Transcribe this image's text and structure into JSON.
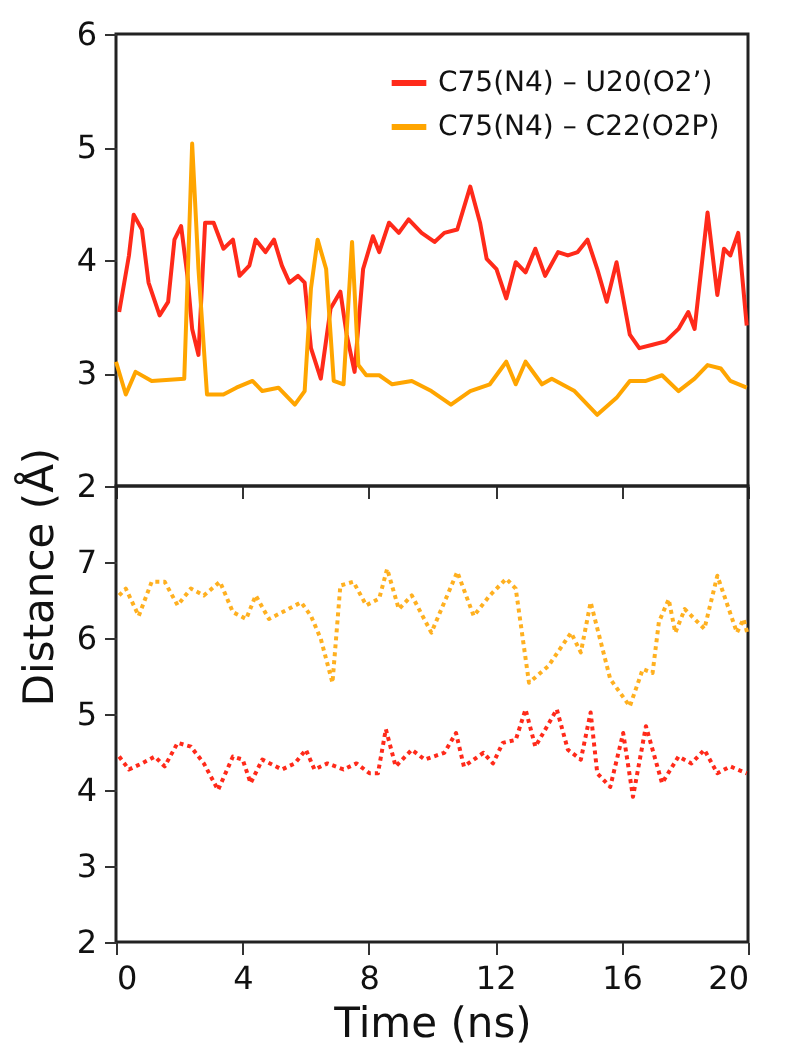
{
  "chart_data": [
    {
      "type": "line",
      "ylabel": "Distance (Å)",
      "xlim": [
        0,
        20
      ],
      "ylim": [
        2,
        6
      ],
      "xticks": [
        0,
        4,
        8,
        12,
        16,
        20
      ],
      "yticks": [
        2,
        3,
        4,
        5,
        6
      ],
      "tick_labels": "y",
      "grid": false,
      "legend": "top right",
      "line_style": "solid",
      "marker": "none",
      "series": [
        {
          "name": "C75(N4) – U20(O2’)",
          "color": "#ff2a1a",
          "x": [
            0.1,
            0.41,
            0.56,
            0.82,
            1.03,
            1.38,
            1.65,
            1.85,
            2.06,
            2.26,
            2.41,
            2.61,
            2.82,
            3.09,
            3.4,
            3.7,
            3.91,
            4.22,
            4.42,
            4.73,
            5.0,
            5.25,
            5.49,
            5.76,
            5.97,
            6.17,
            6.48,
            6.79,
            7.1,
            7.3,
            7.55,
            7.82,
            8.13,
            8.33,
            8.64,
            8.95,
            9.26,
            9.67,
            10.08,
            10.39,
            10.8,
            11.21,
            11.52,
            11.73,
            12.04,
            12.35,
            12.65,
            12.96,
            13.27,
            13.58,
            13.99,
            14.3,
            14.61,
            14.92,
            15.23,
            15.53,
            15.84,
            16.26,
            16.56,
            16.98,
            17.39,
            17.8,
            18.11,
            18.31,
            18.72,
            19.03,
            19.24,
            19.44,
            19.69,
            19.96
          ],
          "values": [
            3.54,
            4.04,
            4.4,
            4.27,
            3.8,
            3.51,
            3.63,
            4.18,
            4.3,
            3.86,
            3.39,
            3.16,
            4.33,
            4.33,
            4.1,
            4.18,
            3.86,
            3.95,
            4.18,
            4.07,
            4.18,
            3.95,
            3.8,
            3.86,
            3.8,
            3.22,
            2.95,
            3.57,
            3.72,
            3.34,
            3.01,
            3.92,
            4.21,
            4.07,
            4.33,
            4.24,
            4.36,
            4.24,
            4.16,
            4.24,
            4.27,
            4.65,
            4.33,
            4.01,
            3.92,
            3.66,
            3.98,
            3.89,
            4.1,
            3.86,
            4.07,
            4.04,
            4.07,
            4.18,
            3.92,
            3.63,
            3.98,
            3.34,
            3.22,
            3.25,
            3.28,
            3.39,
            3.54,
            3.39,
            4.42,
            3.69,
            4.1,
            4.04,
            4.24,
            3.42
          ]
        },
        {
          "name": "C75(N4) – C22(O2P)",
          "color": "#ffa500",
          "x": [
            0,
            0.31,
            0.62,
            1.13,
            2.16,
            2.41,
            2.61,
            2.88,
            3.4,
            3.81,
            4.32,
            4.63,
            5.14,
            5.66,
            5.97,
            6.17,
            6.38,
            6.65,
            6.89,
            7.2,
            7.47,
            7.67,
            7.92,
            8.33,
            8.74,
            9.36,
            9.98,
            10.6,
            11.21,
            11.83,
            12.35,
            12.65,
            12.96,
            13.48,
            13.79,
            14.51,
            15.23,
            15.84,
            16.26,
            16.77,
            17.28,
            17.8,
            18.31,
            18.72,
            19.14,
            19.44,
            19.96
          ],
          "values": [
            3.1,
            2.81,
            3.01,
            2.93,
            2.95,
            5.03,
            3.92,
            2.81,
            2.81,
            2.87,
            2.93,
            2.84,
            2.87,
            2.72,
            2.84,
            3.75,
            4.18,
            3.92,
            2.93,
            2.9,
            4.16,
            3.07,
            2.98,
            2.98,
            2.9,
            2.93,
            2.84,
            2.72,
            2.84,
            2.9,
            3.1,
            2.9,
            3.1,
            2.9,
            2.95,
            2.84,
            2.63,
            2.78,
            2.93,
            2.93,
            2.98,
            2.84,
            2.95,
            3.07,
            3.04,
            2.93,
            2.87
          ]
        }
      ]
    },
    {
      "type": "line",
      "xlabel": "Time (ns)",
      "xlim": [
        0,
        20
      ],
      "ylim": [
        2,
        8
      ],
      "xticks": [
        0,
        4,
        8,
        12,
        16,
        20
      ],
      "yticks": [
        2,
        3,
        4,
        5,
        6,
        7
      ],
      "grid": false,
      "line_style": "dotted",
      "marker": "none",
      "series": [
        {
          "color": "#ffb020",
          "x": [
            0.1,
            0.31,
            0.72,
            1.13,
            1.54,
            1.95,
            2.37,
            2.78,
            3.29,
            3.7,
            4.12,
            4.42,
            4.84,
            5.45,
            5.86,
            6.17,
            6.48,
            6.85,
            7.1,
            7.51,
            7.92,
            8.33,
            8.58,
            8.95,
            9.36,
            9.98,
            10.39,
            10.8,
            11.32,
            11.83,
            12.35,
            12.65,
            13.07,
            13.68,
            14.4,
            14.71,
            15.02,
            15.64,
            16.26,
            16.67,
            16.98,
            17.18,
            17.49,
            17.7,
            18.0,
            18.62,
            19.03,
            19.65,
            19.86,
            20
          ],
          "values": [
            6.56,
            6.65,
            6.29,
            6.74,
            6.74,
            6.43,
            6.65,
            6.56,
            6.74,
            6.34,
            6.25,
            6.56,
            6.25,
            6.38,
            6.47,
            6.29,
            5.99,
            5.41,
            6.69,
            6.74,
            6.43,
            6.52,
            6.91,
            6.38,
            6.56,
            6.07,
            6.47,
            6.87,
            6.29,
            6.56,
            6.78,
            6.65,
            5.41,
            5.63,
            6.07,
            5.81,
            6.47,
            5.46,
            5.1,
            5.59,
            5.54,
            6.21,
            6.51,
            6.07,
            6.38,
            6.12,
            6.82,
            6.07,
            6.25,
            6.03
          ]
        },
        {
          "color": "#ff2a1a",
          "x": [
            0.1,
            0.41,
            0.82,
            1.23,
            1.54,
            1.95,
            2.37,
            2.78,
            3.23,
            3.7,
            4.01,
            4.26,
            4.63,
            5.25,
            5.66,
            6.01,
            6.28,
            6.69,
            7.2,
            7.61,
            8.02,
            8.29,
            8.54,
            8.85,
            9.36,
            9.77,
            10.39,
            10.76,
            11.01,
            11.63,
            11.93,
            12.24,
            12.65,
            12.96,
            13.27,
            13.95,
            14.3,
            14.71,
            15.02,
            15.23,
            15.64,
            16.05,
            16.36,
            16.77,
            17.28,
            17.8,
            18.21,
            18.62,
            19.03,
            19.44,
            19.96
          ],
          "values": [
            4.44,
            4.27,
            4.35,
            4.44,
            4.31,
            4.62,
            4.57,
            4.35,
            4.0,
            4.44,
            4.4,
            4.09,
            4.4,
            4.27,
            4.35,
            4.53,
            4.27,
            4.35,
            4.27,
            4.35,
            4.22,
            4.22,
            4.8,
            4.31,
            4.53,
            4.4,
            4.49,
            4.75,
            4.31,
            4.49,
            4.35,
            4.62,
            4.66,
            5.06,
            4.57,
            5.06,
            4.53,
            4.4,
            5.02,
            4.22,
            4.04,
            4.75,
            3.91,
            4.84,
            4.09,
            4.44,
            4.35,
            4.53,
            4.22,
            4.31,
            4.22
          ]
        }
      ]
    }
  ]
}
